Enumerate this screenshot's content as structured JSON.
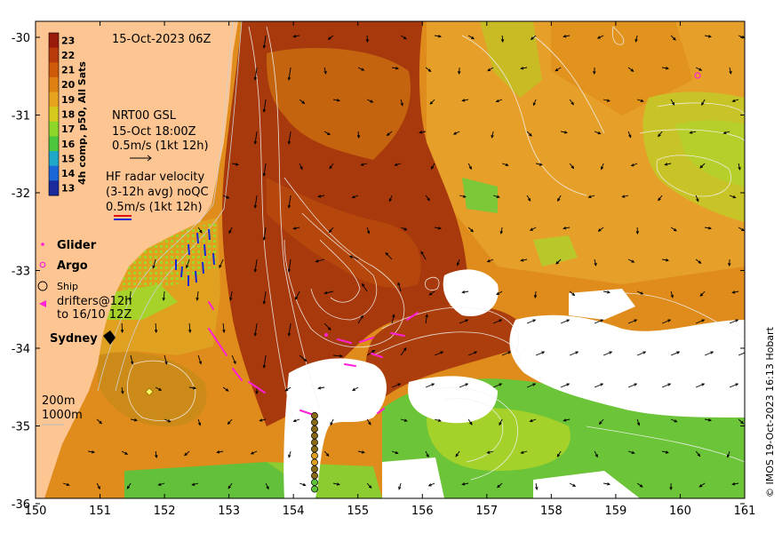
{
  "map": {
    "timestamp": "15-Oct-2023 06Z",
    "x_ticks": [
      "150",
      "151",
      "152",
      "153",
      "154",
      "155",
      "156",
      "157",
      "158",
      "159",
      "160",
      "161"
    ],
    "y_ticks": [
      "-30",
      "-31",
      "-32",
      "-33",
      "-34",
      "-35",
      "-36"
    ],
    "colorbar": {
      "label": "4h comp, p50, All Sats",
      "ticks": [
        "23",
        "22",
        "21",
        "20",
        "19",
        "18",
        "17",
        "16",
        "15",
        "14",
        "13"
      ],
      "colors": [
        "#9a1a0c",
        "#b83a0a",
        "#cf5a08",
        "#df8012",
        "#e9a21c",
        "#d6c91e",
        "#8ed62a",
        "#4cc63c",
        "#1fa7c8",
        "#1c67d8",
        "#1a2a9a"
      ]
    },
    "legend": {
      "gsl_title": "NRT00 GSL",
      "gsl_time": "15-Oct 18:00Z",
      "gsl_scale": "0.5m/s (1kt 12h)",
      "hf_title": "HF radar velocity",
      "hf_sub": "(3-12h avg) noQC",
      "hf_scale": "0.5m/s (1kt 12h)",
      "glider": "Glider",
      "argo": "Argo",
      "ship": "Ship",
      "drifters_1": "drifters@12h",
      "drifters_2": "to 16/10 12Z",
      "sydney": "Sydney",
      "iso_200": "200m",
      "iso_1000": "1000m"
    },
    "copyright": "© IMOS 19-Oct-2023 16:13 Hobart",
    "colors": {
      "land": "#fdc592",
      "warm": "#a83a0c",
      "mid": "#d9851a",
      "orange": "#e99a22",
      "cool": "#5cc338",
      "cloud": "#ffffff",
      "drifter": "#ff1fd6",
      "hf_blue": "#1428d8"
    }
  }
}
